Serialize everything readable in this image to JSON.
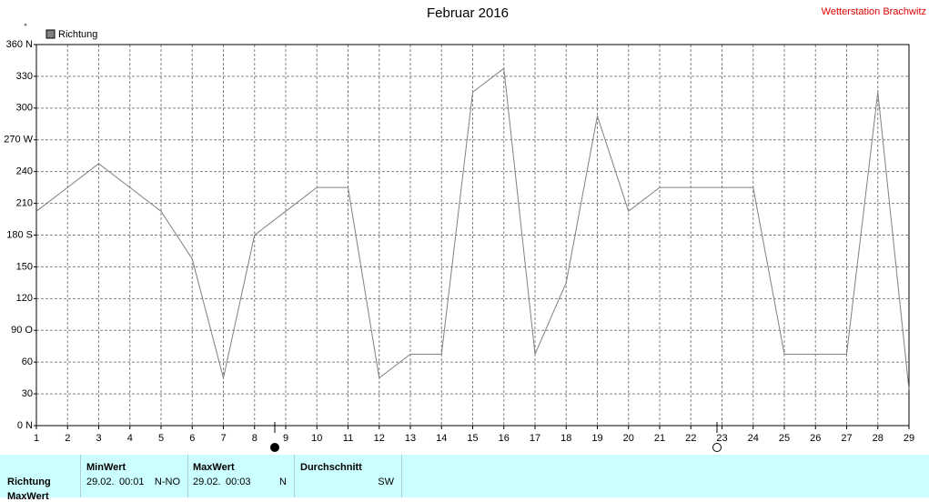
{
  "chart_data": {
    "type": "line",
    "title": "Februar 2016",
    "station": "Wetterstation Brachwitz",
    "y_unit": "°",
    "x": [
      1,
      2,
      3,
      4,
      5,
      6,
      7,
      8,
      9,
      10,
      11,
      12,
      13,
      14,
      15,
      16,
      17,
      18,
      19,
      20,
      21,
      22,
      23,
      24,
      25,
      26,
      27,
      28,
      29
    ],
    "xlim": [
      1,
      29
    ],
    "xticks": [
      1,
      2,
      3,
      4,
      5,
      6,
      7,
      8,
      9,
      10,
      11,
      12,
      13,
      14,
      15,
      16,
      17,
      18,
      19,
      20,
      21,
      22,
      23,
      24,
      25,
      26,
      27,
      28,
      29
    ],
    "ylim": [
      0,
      360
    ],
    "yticks": [
      {
        "value": 0,
        "label": "0 N"
      },
      30,
      60,
      {
        "value": 90,
        "label": "90 O"
      },
      120,
      150,
      {
        "value": 180,
        "label": "180 S"
      },
      210,
      240,
      {
        "value": 270,
        "label": "270 W"
      },
      300,
      330,
      {
        "value": 360,
        "label": "360 N"
      }
    ],
    "grid": true,
    "series": [
      {
        "name": "Richtung",
        "color": "#808080",
        "values": [
          202.5,
          225,
          247.5,
          225,
          202.5,
          157.5,
          45,
          180,
          202.5,
          225,
          225,
          45,
          67.5,
          67.5,
          315,
          337.5,
          67.5,
          135,
          292.5,
          202.5,
          225,
          225,
          225,
          225,
          67.5,
          67.5,
          67.5,
          315,
          34
        ]
      }
    ]
  },
  "table": {
    "row_labels": [
      "Richtung",
      "MaxWert"
    ],
    "columns": [
      {
        "header": "MinWert",
        "date": "29.02.",
        "time": "00:01",
        "value": "N-NO"
      },
      {
        "header": "MaxWert",
        "date": "29.02.",
        "time": "00:03",
        "value": "N"
      },
      {
        "header": "Durchschnitt",
        "value": "SW"
      }
    ]
  }
}
